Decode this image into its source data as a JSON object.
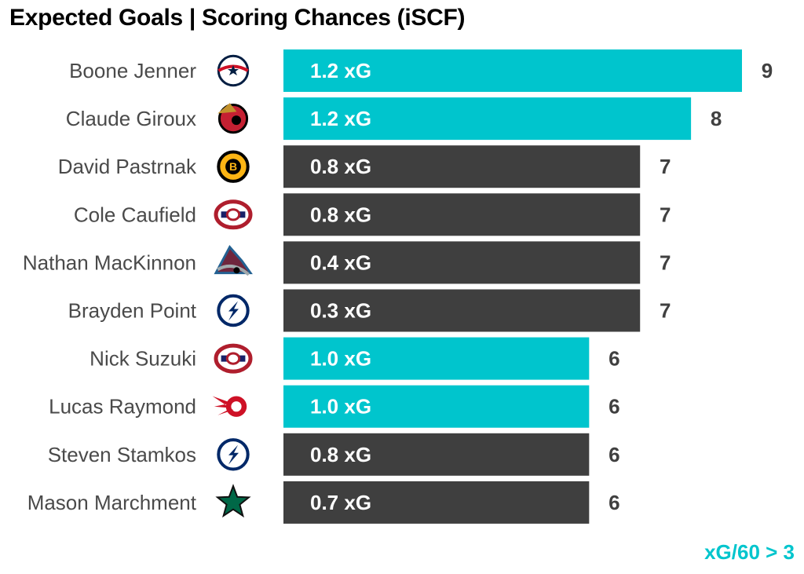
{
  "chart_data": {
    "type": "bar",
    "orientation": "horizontal",
    "title": "Expected Goals | Scoring Chances (iSCF)",
    "value_label_suffix": " xG",
    "players": [
      {
        "name": "Boone Jenner",
        "team_icon": "blue-jackets-logo-icon",
        "xg": 1.2,
        "iscf": 9,
        "highlight": true
      },
      {
        "name": "Claude Giroux",
        "team_icon": "senators-logo-icon",
        "xg": 1.2,
        "iscf": 8,
        "highlight": true
      },
      {
        "name": "David Pastrnak",
        "team_icon": "bruins-logo-icon",
        "xg": 0.8,
        "iscf": 7,
        "highlight": false
      },
      {
        "name": "Cole Caufield",
        "team_icon": "canadiens-logo-icon",
        "xg": 0.8,
        "iscf": 7,
        "highlight": false
      },
      {
        "name": "Nathan MacKinnon",
        "team_icon": "avalanche-logo-icon",
        "xg": 0.4,
        "iscf": 7,
        "highlight": false
      },
      {
        "name": "Brayden Point",
        "team_icon": "lightning-logo-icon",
        "xg": 0.3,
        "iscf": 7,
        "highlight": false
      },
      {
        "name": "Nick Suzuki",
        "team_icon": "canadiens-logo-icon",
        "xg": 1.0,
        "iscf": 6,
        "highlight": true
      },
      {
        "name": "Lucas Raymond",
        "team_icon": "red-wings-logo-icon",
        "xg": 1.0,
        "iscf": 6,
        "highlight": true
      },
      {
        "name": "Steven Stamkos",
        "team_icon": "lightning-logo-icon",
        "xg": 0.8,
        "iscf": 6,
        "highlight": false
      },
      {
        "name": "Mason Marchment",
        "team_icon": "stars-logo-icon",
        "xg": 0.7,
        "iscf": 6,
        "highlight": false
      }
    ],
    "xlim": [
      0,
      9
    ],
    "grid": false,
    "legend": {
      "text": "xG/60 > 3",
      "placement": "bottom-right"
    },
    "colors": {
      "highlight": "#00c5cd",
      "default": "#3f3f3f"
    }
  }
}
